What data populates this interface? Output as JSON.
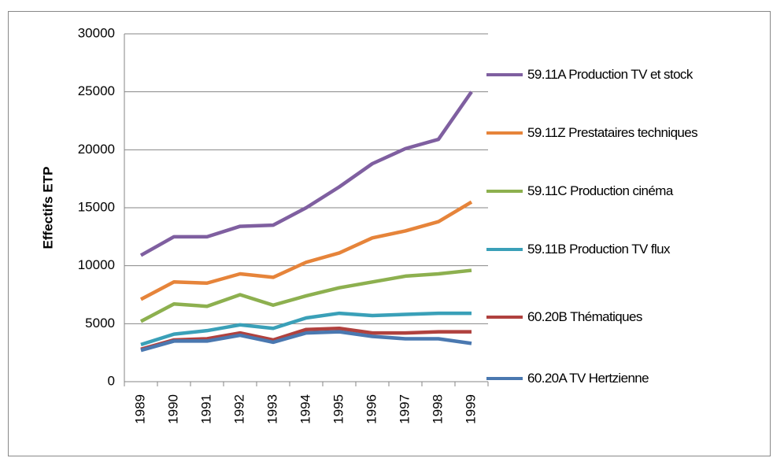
{
  "chart_data": {
    "type": "line",
    "y_label": "Effectifs ETP",
    "categories": [
      "1989",
      "1990",
      "1991",
      "1992",
      "1993",
      "1994",
      "1995",
      "1996",
      "1997",
      "1998",
      "1999"
    ],
    "series": [
      {
        "name": "59.11A Production TV et stock",
        "color": "#7f5fa0",
        "values": [
          10900,
          12500,
          12500,
          13400,
          13500,
          15000,
          16800,
          18800,
          20100,
          20900,
          25000
        ]
      },
      {
        "name": "59.11Z Prestataires techniques",
        "color": "#e6843a",
        "values": [
          7100,
          8600,
          8500,
          9300,
          9000,
          10300,
          11100,
          12400,
          13000,
          13800,
          15500
        ]
      },
      {
        "name": "59.11C Production cinéma",
        "color": "#8db04f",
        "values": [
          5200,
          6700,
          6500,
          7500,
          6600,
          7400,
          8100,
          8600,
          9100,
          9300,
          9600
        ]
      },
      {
        "name": "59.11B Production TV flux",
        "color": "#3aa0b8",
        "values": [
          3200,
          4100,
          4400,
          4900,
          4600,
          5500,
          5900,
          5700,
          5800,
          5900,
          5900
        ]
      },
      {
        "name": "60.20B Thématiques",
        "color": "#b0413e",
        "values": [
          2800,
          3600,
          3700,
          4200,
          3600,
          4500,
          4600,
          4200,
          4200,
          4300,
          4300
        ]
      },
      {
        "name": "60.20A TV Hertzienne",
        "color": "#4a78b0",
        "values": [
          2700,
          3500,
          3500,
          4000,
          3400,
          4200,
          4300,
          3900,
          3700,
          3700,
          3300
        ]
      }
    ],
    "ylim": [
      0,
      30000
    ],
    "yticks": [
      0,
      5000,
      10000,
      15000,
      20000,
      25000,
      30000
    ],
    "grid": true,
    "legend": "right"
  }
}
